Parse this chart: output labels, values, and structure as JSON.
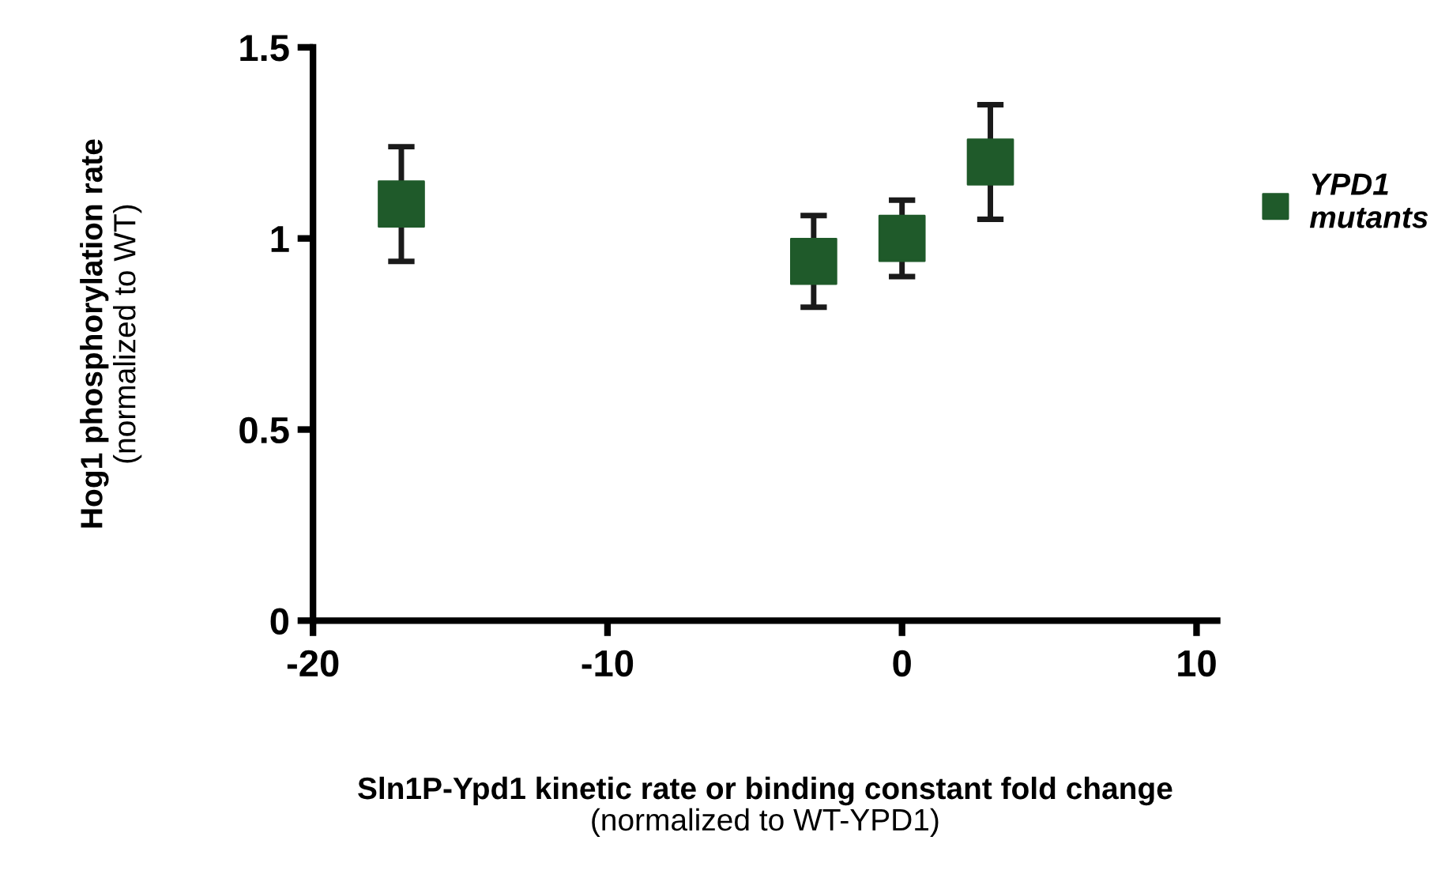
{
  "chart_data": {
    "type": "scatter",
    "xlabel": "Sln1P-Ypd1 kinetic rate or binding constant fold change\n(normalized to WT-YPD1)",
    "ylabel": "Hog1 phosphorylation rate\n(normalized to WT)",
    "x": [
      -17,
      -3,
      0,
      3
    ],
    "series": [
      {
        "name": "YPD1 mutants",
        "color": "#1f5a2a",
        "values": [
          1.09,
          0.94,
          1.0,
          1.2
        ],
        "errors": [
          0.15,
          0.12,
          0.1,
          0.15
        ]
      }
    ],
    "xlim": [
      -20,
      10.7
    ],
    "xticks": [
      -20,
      -10,
      0,
      10
    ],
    "ylim": [
      0,
      1.5
    ],
    "yticks": [
      0,
      0.5,
      1,
      1.5
    ],
    "marker": "square",
    "grid": false,
    "legend": "right"
  }
}
